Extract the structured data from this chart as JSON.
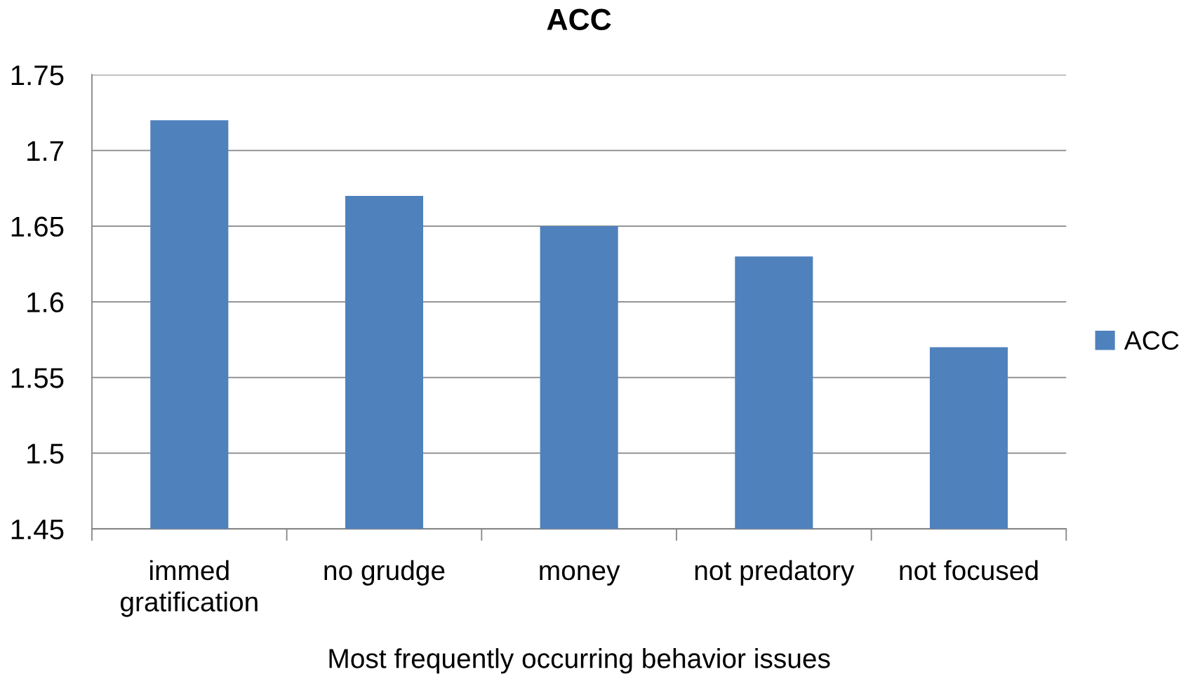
{
  "chart_data": {
    "type": "bar",
    "title": "ACC",
    "xlabel": "Most frequently occurring behavior issues",
    "categories": [
      "immed\ngratification",
      "no grudge",
      "money",
      "not predatory",
      "not focused"
    ],
    "series": [
      {
        "name": "ACC",
        "color": "#4f81bd",
        "values": [
          1.72,
          1.67,
          1.65,
          1.63,
          1.57
        ]
      }
    ],
    "ylim": [
      1.45,
      1.75
    ],
    "yticks": [
      1.45,
      1.5,
      1.55,
      1.6,
      1.65,
      1.7,
      1.75
    ],
    "grid": "y",
    "legend": "right"
  }
}
